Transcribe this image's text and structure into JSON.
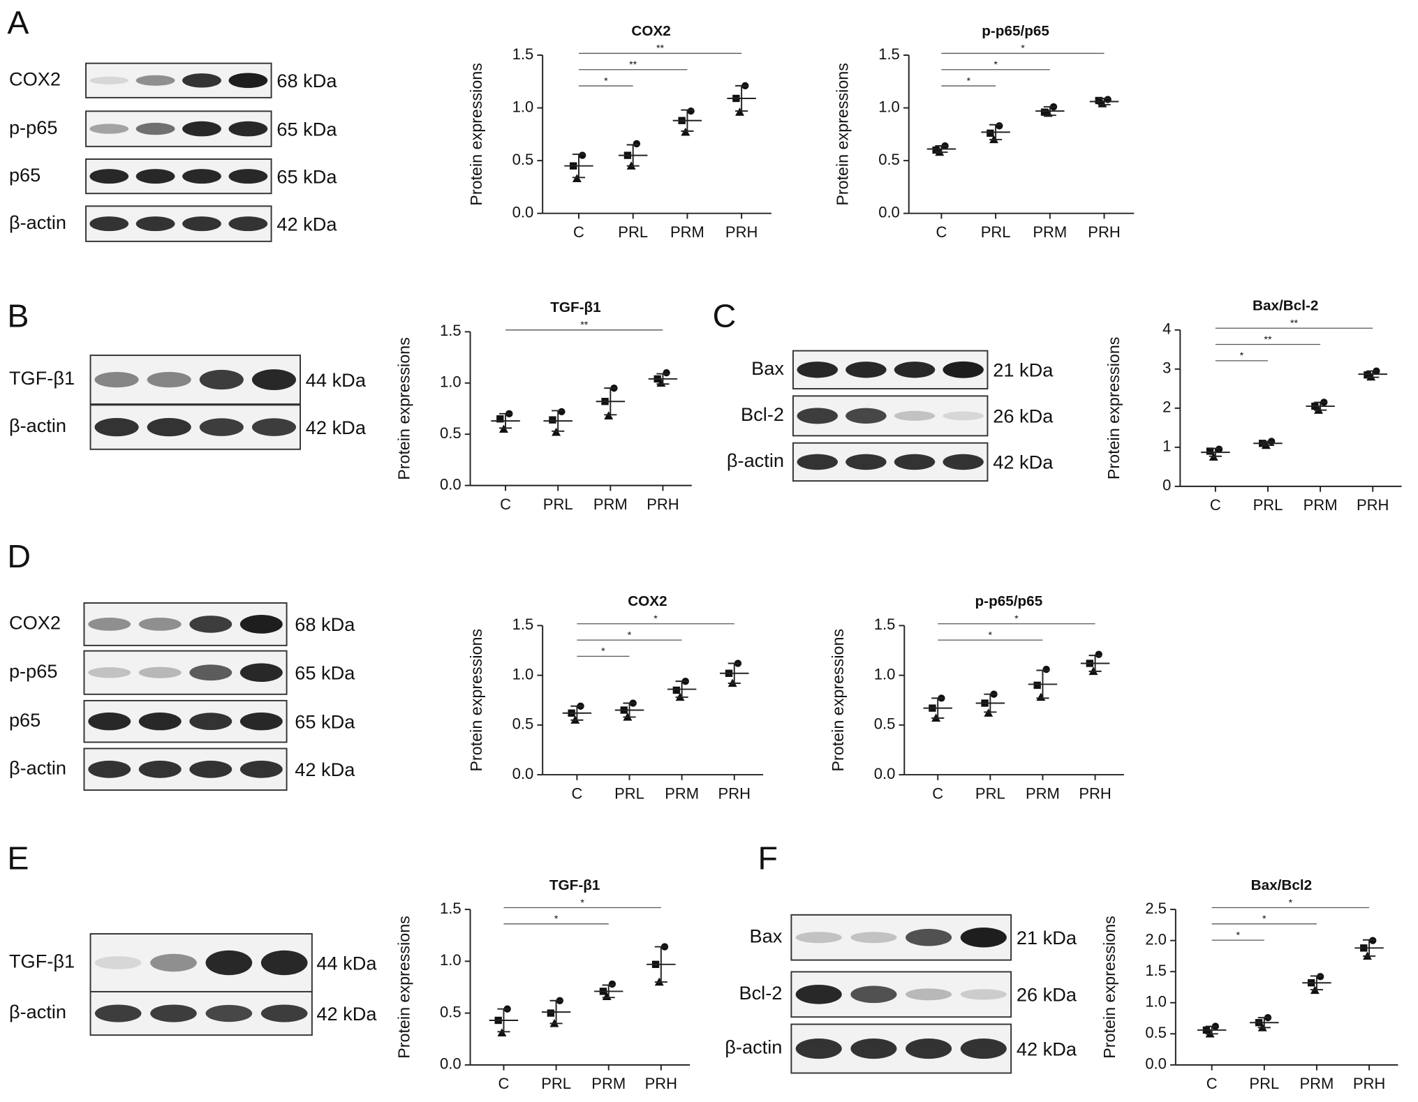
{
  "panel_labels": [
    "A",
    "B",
    "C",
    "D",
    "E",
    "F"
  ],
  "blots": [
    {
      "rows": [
        {
          "protein": "COX2",
          "size": "68 kDa"
        },
        {
          "protein": "p-p65",
          "size": "65 kDa"
        },
        {
          "protein": "p65",
          "size": "65 kDa"
        },
        {
          "protein": "β-actin",
          "size": "42 kDa"
        }
      ]
    },
    {
      "rows": [
        {
          "protein": "TGF-β1",
          "size": "44 kDa"
        },
        {
          "protein": "β-actin",
          "size": "42 kDa"
        }
      ]
    },
    {
      "rows": [
        {
          "protein": "Bax",
          "size": "21 kDa"
        },
        {
          "protein": "Bcl-2",
          "size": "26 kDa"
        },
        {
          "protein": "β-actin",
          "size": "42 kDa"
        }
      ]
    },
    {
      "rows": [
        {
          "protein": "COX2",
          "size": "68 kDa"
        },
        {
          "protein": "p-p65",
          "size": "65 kDa"
        },
        {
          "protein": "p65",
          "size": "65 kDa"
        },
        {
          "protein": "β-actin",
          "size": "42 kDa"
        }
      ]
    },
    {
      "rows": [
        {
          "protein": "TGF-β1",
          "size": "44 kDa"
        },
        {
          "protein": "β-actin",
          "size": "42 kDa"
        }
      ]
    },
    {
      "rows": [
        {
          "protein": "Bax",
          "size": "21 kDa"
        },
        {
          "protein": "Bcl-2",
          "size": "26 kDa"
        },
        {
          "protein": "β-actin",
          "size": "42 kDa"
        }
      ]
    }
  ],
  "chart_data": [
    {
      "type": "dotplot",
      "title": "COX2",
      "y_label": "Protein expressions",
      "categories": [
        "C",
        "PRL",
        "PRM",
        "PRH"
      ],
      "points": [
        [
          0.55,
          0.45,
          0.33
        ],
        [
          0.66,
          0.55,
          0.45
        ],
        [
          0.97,
          0.88,
          0.77
        ],
        [
          1.21,
          1.09,
          0.96
        ]
      ],
      "mean": [
        0.45,
        0.55,
        0.88,
        1.09
      ],
      "sd": [
        0.11,
        0.1,
        0.1,
        0.12
      ],
      "ylim": [
        0,
        1.5
      ],
      "yticks": [
        {
          "value": 0,
          "label": "0.0"
        },
        0.5,
        {
          "value": 1,
          "label": "1.0"
        },
        1.5
      ],
      "annotations": [
        {
          "between": [
            0,
            1
          ],
          "label": "*"
        },
        {
          "between": [
            0,
            2
          ],
          "label": "**"
        },
        {
          "between": [
            0,
            3
          ],
          "label": "**"
        }
      ]
    },
    {
      "type": "dotplot",
      "title": "p-p65/p65",
      "y_label": "Protein expressions",
      "categories": [
        "C",
        "PRL",
        "PRM",
        "PRH"
      ],
      "points": [
        [
          0.64,
          0.6,
          0.58
        ],
        [
          0.83,
          0.76,
          0.7
        ],
        [
          1.01,
          0.96,
          0.95
        ],
        [
          1.08,
          1.07,
          1.04
        ]
      ],
      "mean": [
        0.61,
        0.77,
        0.97,
        1.06
      ],
      "sd": [
        0.03,
        0.07,
        0.04,
        0.03
      ],
      "ylim": [
        0,
        1.5
      ],
      "yticks": [
        {
          "value": 0,
          "label": "0.0"
        },
        0.5,
        {
          "value": 1,
          "label": "1.0"
        },
        1.5
      ],
      "annotations": [
        {
          "between": [
            0,
            1
          ],
          "label": "*"
        },
        {
          "between": [
            0,
            2
          ],
          "label": "*"
        },
        {
          "between": [
            0,
            3
          ],
          "label": "*"
        }
      ]
    },
    {
      "type": "dotplot",
      "title": "TGF-β1",
      "y_label": "Protein expressions",
      "categories": [
        "C",
        "PRL",
        "PRM",
        "PRH"
      ],
      "points": [
        [
          0.7,
          0.65,
          0.55
        ],
        [
          0.72,
          0.64,
          0.52
        ],
        [
          0.95,
          0.82,
          0.68
        ],
        [
          1.1,
          1.04,
          1.0
        ]
      ],
      "mean": [
        0.63,
        0.63,
        0.82,
        1.04
      ],
      "sd": [
        0.07,
        0.1,
        0.13,
        0.05
      ],
      "ylim": [
        0,
        1.5
      ],
      "yticks": [
        {
          "value": 0,
          "label": "0.0"
        },
        0.5,
        {
          "value": 1,
          "label": "1.0"
        },
        1.5
      ],
      "annotations": [
        {
          "between": [
            0,
            3
          ],
          "label": "**"
        }
      ]
    },
    {
      "type": "dotplot",
      "title": "Bax/Bcl-2",
      "y_label": "Protein expressions",
      "categories": [
        "C",
        "PRL",
        "PRM",
        "PRH"
      ],
      "points": [
        [
          0.95,
          0.9,
          0.75
        ],
        [
          1.15,
          1.1,
          1.05
        ],
        [
          2.15,
          2.05,
          1.95
        ],
        [
          2.95,
          2.85,
          2.8
        ]
      ],
      "mean": [
        0.87,
        1.1,
        2.05,
        2.87
      ],
      "sd": [
        0.1,
        0.05,
        0.1,
        0.08
      ],
      "ylim": [
        0,
        4
      ],
      "yticks": [
        0,
        1,
        2,
        3,
        4
      ],
      "annotations": [
        {
          "between": [
            0,
            1
          ],
          "label": "*"
        },
        {
          "between": [
            0,
            2
          ],
          "label": "**"
        },
        {
          "between": [
            0,
            3
          ],
          "label": "**"
        }
      ]
    },
    {
      "type": "dotplot",
      "title": "COX2",
      "y_label": "Protein expressions",
      "categories": [
        "C",
        "PRL",
        "PRM",
        "PRH"
      ],
      "points": [
        [
          0.69,
          0.62,
          0.55
        ],
        [
          0.72,
          0.65,
          0.58
        ],
        [
          0.94,
          0.85,
          0.78
        ],
        [
          1.12,
          1.02,
          0.92
        ]
      ],
      "mean": [
        0.62,
        0.65,
        0.86,
        1.02
      ],
      "sd": [
        0.07,
        0.07,
        0.08,
        0.1
      ],
      "ylim": [
        0,
        1.5
      ],
      "yticks": [
        {
          "value": 0,
          "label": "0.0"
        },
        0.5,
        {
          "value": 1,
          "label": "1.0"
        },
        1.5
      ],
      "annotations": [
        {
          "between": [
            0,
            1
          ],
          "label": "*"
        },
        {
          "between": [
            0,
            2
          ],
          "label": "*"
        },
        {
          "between": [
            0,
            3
          ],
          "label": "*"
        }
      ]
    },
    {
      "type": "dotplot",
      "title": "p-p65/p65",
      "y_label": "Protein expressions",
      "categories": [
        "C",
        "PRL",
        "PRM",
        "PRH"
      ],
      "points": [
        [
          0.77,
          0.67,
          0.57
        ],
        [
          0.81,
          0.72,
          0.62
        ],
        [
          1.06,
          0.9,
          0.78
        ],
        [
          1.21,
          1.12,
          1.04
        ]
      ],
      "mean": [
        0.67,
        0.72,
        0.91,
        1.12
      ],
      "sd": [
        0.1,
        0.09,
        0.14,
        0.08
      ],
      "ylim": [
        0,
        1.5
      ],
      "yticks": [
        {
          "value": 0,
          "label": "0.0"
        },
        0.5,
        {
          "value": 1,
          "label": "1.0"
        },
        1.5
      ],
      "annotations": [
        {
          "between": [
            0,
            2
          ],
          "label": "*"
        },
        {
          "between": [
            0,
            3
          ],
          "label": "*"
        }
      ]
    },
    {
      "type": "dotplot",
      "title": "TGF-β1",
      "y_label": "Protein expressions",
      "categories": [
        "C",
        "PRL",
        "PRM",
        "PRH"
      ],
      "points": [
        [
          0.54,
          0.43,
          0.31
        ],
        [
          0.62,
          0.5,
          0.4
        ],
        [
          0.78,
          0.71,
          0.66
        ],
        [
          1.14,
          0.97,
          0.8
        ]
      ],
      "mean": [
        0.43,
        0.51,
        0.71,
        0.97
      ],
      "sd": [
        0.11,
        0.11,
        0.06,
        0.17
      ],
      "ylim": [
        0,
        1.5
      ],
      "yticks": [
        {
          "value": 0,
          "label": "0.0"
        },
        0.5,
        {
          "value": 1,
          "label": "1.0"
        },
        1.5
      ],
      "annotations": [
        {
          "between": [
            0,
            2
          ],
          "label": "*"
        },
        {
          "between": [
            0,
            3
          ],
          "label": "*"
        }
      ]
    },
    {
      "type": "dotplot",
      "title": "Bax/Bcl2",
      "y_label": "Protein expressions",
      "categories": [
        "C",
        "PRL",
        "PRM",
        "PRH"
      ],
      "points": [
        [
          0.62,
          0.56,
          0.5
        ],
        [
          0.76,
          0.68,
          0.6
        ],
        [
          1.42,
          1.32,
          1.2
        ],
        [
          2.0,
          1.88,
          1.75
        ]
      ],
      "mean": [
        0.56,
        0.68,
        1.32,
        1.88
      ],
      "sd": [
        0.06,
        0.08,
        0.11,
        0.13
      ],
      "ylim": [
        0,
        2.5
      ],
      "yticks": [
        {
          "value": 0,
          "label": "0.0"
        },
        0.5,
        {
          "value": 1,
          "label": "1.0"
        },
        1.5,
        {
          "value": 2,
          "label": "2.0"
        },
        2.5
      ],
      "annotations": [
        {
          "between": [
            0,
            1
          ],
          "label": "*"
        },
        {
          "between": [
            0,
            2
          ],
          "label": "*"
        },
        {
          "between": [
            0,
            3
          ],
          "label": "*"
        }
      ]
    }
  ]
}
